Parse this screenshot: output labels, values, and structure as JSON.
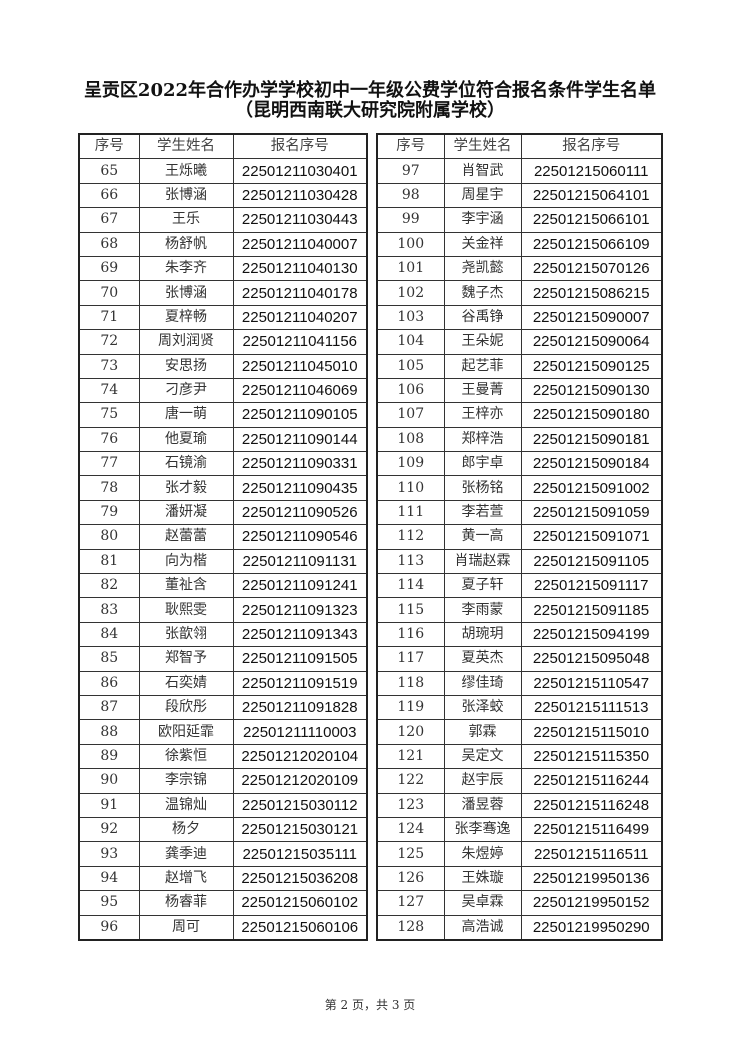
{
  "document": {
    "title": "呈贡区2022年合作办学学校初中一年级公费学位符合报名条件学生名单",
    "subtitle": "（昆明西南联大研究院附属学校）",
    "footer": "第 2 页，共 3 页"
  },
  "table": {
    "headers": [
      "序号",
      "学生姓名",
      "报名序号"
    ],
    "left_rows": [
      [
        "65",
        "王烁曦",
        "22501211030401"
      ],
      [
        "66",
        "张博涵",
        "22501211030428"
      ],
      [
        "67",
        "王乐",
        "22501211030443"
      ],
      [
        "68",
        "杨舒帆",
        "22501211040007"
      ],
      [
        "69",
        "朱李齐",
        "22501211040130"
      ],
      [
        "70",
        "张博涵",
        "22501211040178"
      ],
      [
        "71",
        "夏梓畅",
        "22501211040207"
      ],
      [
        "72",
        "周刘润贤",
        "22501211041156"
      ],
      [
        "73",
        "安思扬",
        "22501211045010"
      ],
      [
        "74",
        "刁彦尹",
        "22501211046069"
      ],
      [
        "75",
        "唐一萌",
        "22501211090105"
      ],
      [
        "76",
        "他夏瑜",
        "22501211090144"
      ],
      [
        "77",
        "石镜渝",
        "22501211090331"
      ],
      [
        "78",
        "张才毅",
        "22501211090435"
      ],
      [
        "79",
        "潘妍凝",
        "22501211090526"
      ],
      [
        "80",
        "赵蕾蕾",
        "22501211090546"
      ],
      [
        "81",
        "向为楷",
        "22501211091131"
      ],
      [
        "82",
        "董祉含",
        "22501211091241"
      ],
      [
        "83",
        "耿熙雯",
        "22501211091323"
      ],
      [
        "84",
        "张歆翎",
        "22501211091343"
      ],
      [
        "85",
        "郑智予",
        "22501211091505"
      ],
      [
        "86",
        "石奕婧",
        "22501211091519"
      ],
      [
        "87",
        "段欣彤",
        "22501211091828"
      ],
      [
        "88",
        "欧阳延霏",
        "22501211110003"
      ],
      [
        "89",
        "徐紫恒",
        "22501212020104"
      ],
      [
        "90",
        "李宗锦",
        "22501212020109"
      ],
      [
        "91",
        "温锦灿",
        "22501215030112"
      ],
      [
        "92",
        "杨夕",
        "22501215030121"
      ],
      [
        "93",
        "龚季迪",
        "22501215035111"
      ],
      [
        "94",
        "赵增飞",
        "22501215036208"
      ],
      [
        "95",
        "杨睿菲",
        "22501215060102"
      ],
      [
        "96",
        "周可",
        "22501215060106"
      ]
    ],
    "right_rows": [
      [
        "97",
        "肖智武",
        "22501215060111"
      ],
      [
        "98",
        "周星宇",
        "22501215064101"
      ],
      [
        "99",
        "李宇涵",
        "22501215066101"
      ],
      [
        "100",
        "关金祥",
        "22501215066109"
      ],
      [
        "101",
        "尧凯懿",
        "22501215070126"
      ],
      [
        "102",
        "魏子杰",
        "22501215086215"
      ],
      [
        "103",
        "谷禹铮",
        "22501215090007"
      ],
      [
        "104",
        "王朵妮",
        "22501215090064"
      ],
      [
        "105",
        "起艺菲",
        "22501215090125"
      ],
      [
        "106",
        "王曼菁",
        "22501215090130"
      ],
      [
        "107",
        "王梓亦",
        "22501215090180"
      ],
      [
        "108",
        "郑梓浩",
        "22501215090181"
      ],
      [
        "109",
        "郎宇卓",
        "22501215090184"
      ],
      [
        "110",
        "张杨铭",
        "22501215091002"
      ],
      [
        "111",
        "李若萱",
        "22501215091059"
      ],
      [
        "112",
        "黄一高",
        "22501215091071"
      ],
      [
        "113",
        "肖瑞赵霖",
        "22501215091105"
      ],
      [
        "114",
        "夏子轩",
        "22501215091117"
      ],
      [
        "115",
        "李雨蒙",
        "22501215091185"
      ],
      [
        "116",
        "胡琬玥",
        "22501215094199"
      ],
      [
        "117",
        "夏英杰",
        "22501215095048"
      ],
      [
        "118",
        "缪佳琦",
        "22501215110547"
      ],
      [
        "119",
        "张泽蛟",
        "22501215111513"
      ],
      [
        "120",
        "郭霖",
        "22501215115010"
      ],
      [
        "121",
        "吴定文",
        "22501215115350"
      ],
      [
        "122",
        "赵宇辰",
        "22501215116244"
      ],
      [
        "123",
        "潘昱蓉",
        "22501215116248"
      ],
      [
        "124",
        "张李骞逸",
        "22501215116499"
      ],
      [
        "125",
        "朱煜婷",
        "22501215116511"
      ],
      [
        "126",
        "王姝璇",
        "22501219950136"
      ],
      [
        "127",
        "吴卓霖",
        "22501219950152"
      ],
      [
        "128",
        "高浩诚",
        "22501219950290"
      ]
    ]
  }
}
